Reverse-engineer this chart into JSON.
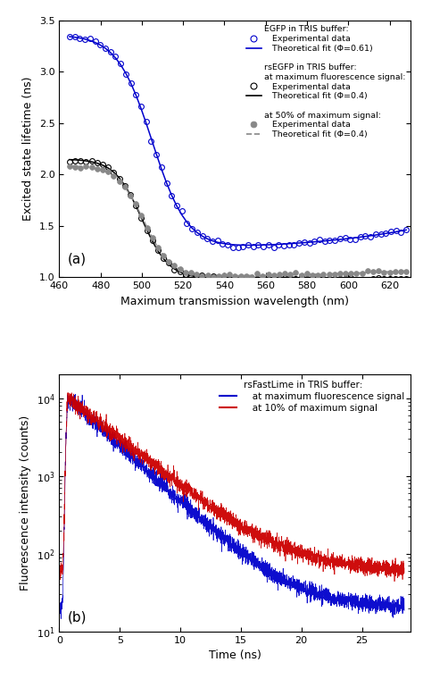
{
  "panel_a": {
    "xlabel": "Maximum transmission wavelength (nm)",
    "ylabel": "Excited state lifetime (ns)",
    "xlim": [
      460,
      630
    ],
    "ylim": [
      1.0,
      3.5
    ],
    "yticks": [
      1.0,
      1.5,
      2.0,
      2.5,
      3.0,
      3.5
    ],
    "xticks": [
      460,
      480,
      500,
      520,
      540,
      560,
      580,
      600,
      620
    ],
    "label": "(a)",
    "egfp_color": "#0000CC",
    "rsegfp_max_color": "#000000",
    "rsegfp_50_color": "#888888",
    "egfp_x_start": 465,
    "egfp_x_end": 628,
    "egfp_n_points": 67,
    "egfp_y_high": 3.35,
    "egfp_y_low": 1.25,
    "egfp_x_mid": 505,
    "egfp_steepness": 8.5,
    "egfp_upturn_amp": 0.08,
    "egfp_upturn_x0": 575,
    "egfp_upturn_scale": 55,
    "rsegfp_x_start": 465,
    "rsegfp_x_end": 628,
    "rsegfp_n_points": 62,
    "rsegfp_max_y_high": 2.15,
    "rsegfp_max_y_low": 0.985,
    "rsegfp_max_x_mid": 500,
    "rsegfp_max_steepness": 6.5,
    "rsegfp_50_y_high": 2.08,
    "rsegfp_50_y_low": 0.995,
    "rsegfp_50_x_mid": 501,
    "rsegfp_50_steepness": 6.5,
    "rsegfp_50_upturn_amp": 0.025,
    "rsegfp_50_upturn_x0": 565,
    "rsegfp_50_upturn_scale": 65,
    "legend_title1": "EGFP in TRIS buffer:",
    "legend_exp1": "Experimental data",
    "legend_fit1": "Theoretical fit (Φ=0.61)",
    "legend_title2": "rsEGFP in TRIS buffer:",
    "legend_sub2a": "at maximum fluorescence signal:",
    "legend_exp2a": "Experimental data",
    "legend_fit2a": "Theoretical fit (Φ=0.4)",
    "legend_sub2b": "at 50% of maximum signal:",
    "legend_exp2b": "Experimental data",
    "legend_fit2b": "Theoretical fit (Φ=0.4)"
  },
  "panel_b": {
    "xlabel": "Time (ns)",
    "ylabel": "Fluorescence intensity (counts)",
    "xlim": [
      0,
      29
    ],
    "ylim_log": [
      10,
      20000
    ],
    "xticks": [
      0,
      5,
      10,
      15,
      20,
      25
    ],
    "label": "(b)",
    "blue_color": "#0000CC",
    "red_color": "#CC0000",
    "legend_title": "rsFastLime in TRIS buffer:",
    "legend_blue": "at maximum fluorescence signal",
    "legend_red": "at 10% of maximum signal",
    "t_start": 0,
    "t_end": 28.5,
    "n_points": 3000,
    "t_peak": 0.75,
    "blue_peak": 10000,
    "blue_tau": 3.0,
    "blue_floor": 20,
    "red_peak": 10000,
    "red_tau": 3.5,
    "red_floor": 60,
    "noise_strength": 0.12
  }
}
